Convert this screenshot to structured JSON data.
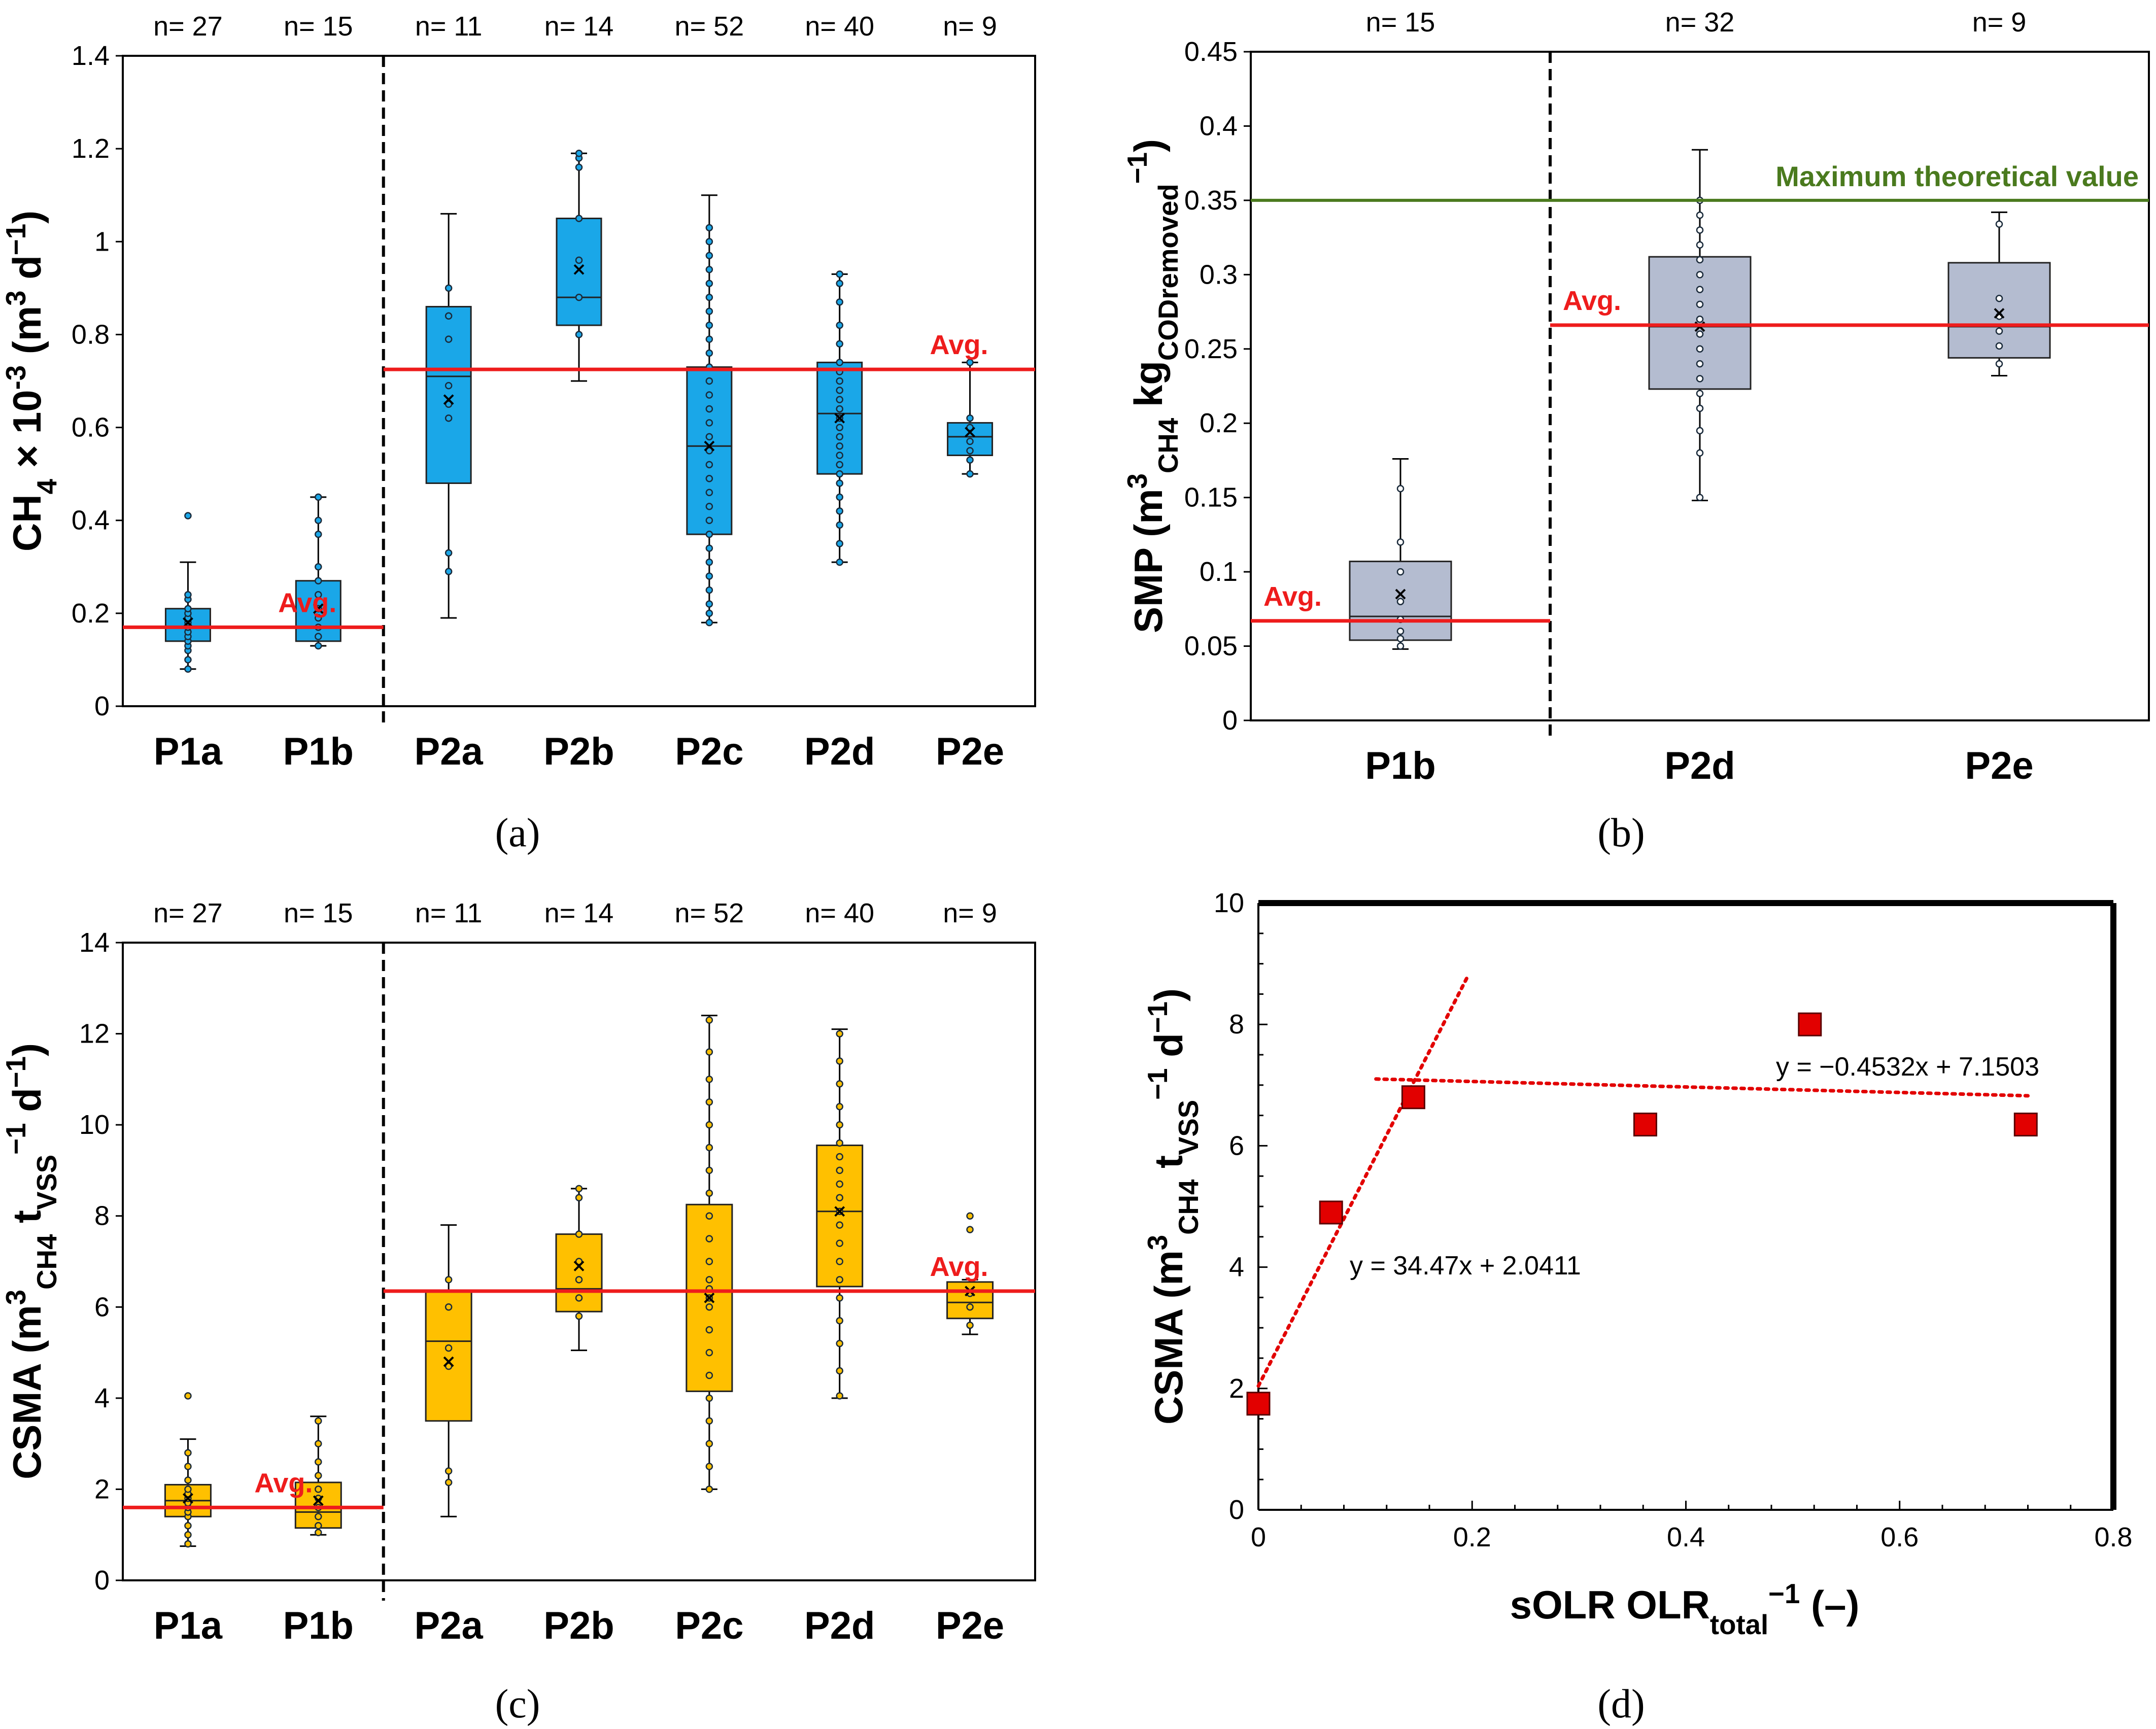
{
  "colors": {
    "blue_box": "#1aa7e8",
    "gray_box": "#b4bcd0",
    "yellow_box": "#ffc000",
    "avg_line": "#ee1c1c",
    "theoretical_line": "#4a7a1e",
    "marker": "#e20000"
  },
  "chart_data": [
    {
      "panel": "a",
      "type": "box",
      "caption": "(a)",
      "ylabel": "CH4 × 10-3 (m3 d−1)",
      "ylabel_parts": {
        "main": "CH",
        "sub": "4",
        "mid": " × 10",
        "sup": "-3",
        "open": " (m",
        "sup2": "3",
        "d": " d",
        "sup3": "−1",
        "close": ")"
      },
      "ylim": [
        0,
        1.4
      ],
      "yticks": [
        0,
        0.2,
        0.4,
        0.6,
        0.8,
        1,
        1.2,
        1.4
      ],
      "ytick_labels": [
        "0",
        "0.2",
        "0.4",
        "0.6",
        "0.8",
        "1",
        "1.2",
        "1.4"
      ],
      "categories": [
        "P1a",
        "P1b",
        "P2a",
        "P2b",
        "P2c",
        "P2d",
        "P2e"
      ],
      "counts": [
        "n= 27",
        "n= 15",
        "n= 11",
        "n= 14",
        "n= 52",
        "n= 40",
        "n= 9"
      ],
      "separator_after_index": 1,
      "boxes": [
        {
          "whisker_low": 0.08,
          "q1": 0.14,
          "median": 0.17,
          "q3": 0.21,
          "whisker_high": 0.31,
          "mean": 0.18,
          "points": [
            0.08,
            0.1,
            0.12,
            0.13,
            0.14,
            0.15,
            0.16,
            0.17,
            0.18,
            0.19,
            0.2,
            0.21,
            0.23,
            0.24,
            0.41
          ]
        },
        {
          "whisker_low": 0.13,
          "q1": 0.14,
          "median": 0.17,
          "q3": 0.27,
          "whisker_high": 0.45,
          "mean": 0.21,
          "points": [
            0.13,
            0.15,
            0.17,
            0.19,
            0.21,
            0.24,
            0.27,
            0.3,
            0.37,
            0.4,
            0.45
          ]
        },
        {
          "whisker_low": 0.19,
          "q1": 0.48,
          "median": 0.71,
          "q3": 0.86,
          "whisker_high": 1.06,
          "mean": 0.66,
          "points": [
            0.29,
            0.33,
            0.62,
            0.65,
            0.69,
            0.79,
            0.84,
            0.9
          ]
        },
        {
          "whisker_low": 0.7,
          "q1": 0.82,
          "median": 0.88,
          "q3": 1.05,
          "whisker_high": 1.19,
          "mean": 0.94,
          "points": [
            0.8,
            0.88,
            0.96,
            1.05,
            1.16,
            1.18,
            1.19
          ]
        },
        {
          "whisker_low": 0.18,
          "q1": 0.37,
          "median": 0.56,
          "q3": 0.73,
          "whisker_high": 1.1,
          "mean": 0.56,
          "points": [
            0.18,
            0.2,
            0.22,
            0.25,
            0.28,
            0.31,
            0.34,
            0.37,
            0.4,
            0.43,
            0.46,
            0.49,
            0.52,
            0.55,
            0.58,
            0.61,
            0.64,
            0.67,
            0.7,
            0.73,
            0.76,
            0.79,
            0.82,
            0.85,
            0.88,
            0.91,
            0.94,
            0.97,
            1.0,
            1.03
          ]
        },
        {
          "whisker_low": 0.31,
          "q1": 0.5,
          "median": 0.63,
          "q3": 0.74,
          "whisker_high": 0.93,
          "mean": 0.62,
          "points": [
            0.31,
            0.35,
            0.39,
            0.42,
            0.45,
            0.48,
            0.5,
            0.52,
            0.54,
            0.56,
            0.58,
            0.6,
            0.62,
            0.64,
            0.66,
            0.68,
            0.7,
            0.72,
            0.74,
            0.78,
            0.82,
            0.87,
            0.91,
            0.93
          ]
        },
        {
          "whisker_low": 0.5,
          "q1": 0.54,
          "median": 0.58,
          "q3": 0.61,
          "whisker_high": 0.74,
          "mean": 0.59,
          "points": [
            0.5,
            0.53,
            0.55,
            0.57,
            0.6,
            0.62,
            0.74
          ]
        }
      ],
      "averages": [
        {
          "label": "Avg.",
          "value": 0.17,
          "from_index": 0,
          "to_index": 1,
          "label_at": "right"
        },
        {
          "label": "Avg.",
          "value": 0.725,
          "from_index": 2,
          "to_index": 6,
          "label_at": "right"
        }
      ]
    },
    {
      "panel": "b",
      "type": "box",
      "caption": "(b)",
      "ylabel_parts": {
        "main": "SMP (m",
        "sup": "3",
        "sub1": "CH4",
        "mid": " kg",
        "sub2": "CODremoved",
        "sup2": "−1",
        "close": ")"
      },
      "ylim": [
        0,
        0.45
      ],
      "yticks": [
        0,
        0.05,
        0.1,
        0.15,
        0.2,
        0.25,
        0.3,
        0.35,
        0.4,
        0.45
      ],
      "ytick_labels": [
        "0",
        "0.05",
        "0.1",
        "0.15",
        "0.2",
        "0.25",
        "0.3",
        "0.35",
        "0.4",
        "0.45"
      ],
      "categories": [
        "P1b",
        "P2d",
        "P2e"
      ],
      "counts": [
        "n= 15",
        "n= 32",
        "n= 9"
      ],
      "separator_after_index": 0,
      "boxes": [
        {
          "whisker_low": 0.048,
          "q1": 0.054,
          "median": 0.07,
          "q3": 0.107,
          "whisker_high": 0.176,
          "mean": 0.085,
          "points": [
            0.05,
            0.055,
            0.06,
            0.068,
            0.08,
            0.1,
            0.12,
            0.156
          ]
        },
        {
          "whisker_low": 0.148,
          "q1": 0.223,
          "median": 0.265,
          "q3": 0.312,
          "whisker_high": 0.384,
          "mean": 0.265,
          "points": [
            0.15,
            0.18,
            0.195,
            0.21,
            0.22,
            0.23,
            0.24,
            0.25,
            0.26,
            0.27,
            0.28,
            0.29,
            0.3,
            0.31,
            0.32,
            0.33,
            0.34,
            0.35
          ]
        },
        {
          "whisker_low": 0.232,
          "q1": 0.244,
          "median": 0.265,
          "q3": 0.308,
          "whisker_high": 0.342,
          "mean": 0.274,
          "points": [
            0.24,
            0.252,
            0.262,
            0.272,
            0.284,
            0.334
          ]
        }
      ],
      "theoretical": {
        "label": "Maximum theoretical value",
        "value": 0.35
      },
      "averages": [
        {
          "label": "Avg.",
          "value": 0.067,
          "from_index": 0,
          "to_index": 0,
          "label_at": "left"
        },
        {
          "label": "Avg.",
          "value": 0.266,
          "from_index": 1,
          "to_index": 2,
          "label_at": "left"
        }
      ]
    },
    {
      "panel": "c",
      "type": "box",
      "caption": "(c)",
      "ylabel_parts": {
        "main": "CSMA (m",
        "sup": "3",
        "sub1": "CH4",
        "mid": " t",
        "sub2": "VSS",
        "sup2": "−1",
        "end": " d",
        "sup3": "−1",
        "close": ")"
      },
      "ylim": [
        0,
        14
      ],
      "yticks": [
        0,
        2,
        4,
        6,
        8,
        10,
        12,
        14
      ],
      "ytick_labels": [
        "0",
        "2",
        "4",
        "6",
        "8",
        "10",
        "12",
        "14"
      ],
      "categories": [
        "P1a",
        "P1b",
        "P2a",
        "P2b",
        "P2c",
        "P2d",
        "P2e"
      ],
      "counts": [
        "n= 27",
        "n= 15",
        "n= 11",
        "n= 14",
        "n= 52",
        "n= 40",
        "n= 9"
      ],
      "separator_after_index": 1,
      "boxes": [
        {
          "whisker_low": 0.75,
          "q1": 1.4,
          "median": 1.75,
          "q3": 2.1,
          "whisker_high": 3.1,
          "mean": 1.8,
          "points": [
            0.8,
            1.0,
            1.2,
            1.4,
            1.5,
            1.6,
            1.7,
            1.8,
            1.9,
            2.0,
            2.2,
            2.5,
            2.8,
            4.05
          ]
        },
        {
          "whisker_low": 1.0,
          "q1": 1.15,
          "median": 1.5,
          "q3": 2.15,
          "whisker_high": 3.6,
          "mean": 1.75,
          "points": [
            1.05,
            1.2,
            1.4,
            1.6,
            1.8,
            2.0,
            2.3,
            2.6,
            3.0,
            3.5
          ]
        },
        {
          "whisker_low": 1.4,
          "q1": 3.5,
          "median": 5.25,
          "q3": 6.35,
          "whisker_high": 7.8,
          "mean": 4.8,
          "points": [
            2.15,
            2.4,
            4.7,
            5.1,
            6.0,
            6.6
          ]
        },
        {
          "whisker_low": 5.05,
          "q1": 5.9,
          "median": 6.4,
          "q3": 7.6,
          "whisker_high": 8.6,
          "mean": 6.9,
          "points": [
            5.8,
            6.2,
            6.6,
            7.0,
            7.6,
            8.4,
            8.6
          ]
        },
        {
          "whisker_low": 2.0,
          "q1": 4.15,
          "median": 6.35,
          "q3": 8.25,
          "whisker_high": 12.4,
          "mean": 6.2,
          "points": [
            2.0,
            2.5,
            3.0,
            3.5,
            4.0,
            4.5,
            5.0,
            5.5,
            6.0,
            6.2,
            6.4,
            6.6,
            7.0,
            7.5,
            8.0,
            8.5,
            9.0,
            9.5,
            10.0,
            10.5,
            11.0,
            11.6,
            12.3
          ]
        },
        {
          "whisker_low": 4.0,
          "q1": 6.45,
          "median": 8.1,
          "q3": 9.55,
          "whisker_high": 12.1,
          "mean": 8.1,
          "points": [
            4.05,
            4.6,
            5.2,
            5.7,
            6.2,
            6.6,
            7.0,
            7.4,
            7.8,
            8.1,
            8.4,
            8.7,
            9.0,
            9.3,
            9.6,
            10.0,
            10.4,
            10.9,
            11.4,
            12.0
          ]
        },
        {
          "whisker_low": 5.4,
          "q1": 5.75,
          "median": 6.1,
          "q3": 6.55,
          "whisker_high": 6.6,
          "mean": 6.35,
          "points": [
            5.6,
            6.0,
            6.3,
            7.7,
            8.0
          ]
        }
      ],
      "averages": [
        {
          "label": "Avg.",
          "value": 1.6,
          "from_index": 0,
          "to_index": 1,
          "label_at": "mid"
        },
        {
          "label": "Avg.",
          "value": 6.35,
          "from_index": 2,
          "to_index": 6,
          "label_at": "right"
        }
      ]
    },
    {
      "panel": "d",
      "type": "scatter",
      "caption": "(d)",
      "xlabel_parts": {
        "main": "sOLR OLR",
        "sub": "total",
        "sup": "−1",
        "close": " (–)"
      },
      "ylabel_parts": {
        "main": "CSMA (m",
        "sup": "3",
        "sub1": "CH4",
        "mid": " t",
        "sub2": "VSS",
        "sup2": "−1",
        "end": " d",
        "sup3": "−1",
        "close": ")"
      },
      "xlim": [
        0,
        0.8
      ],
      "ylim": [
        0,
        10
      ],
      "xticks": [
        0,
        0.2,
        0.4,
        0.6,
        0.8
      ],
      "xtick_labels": [
        "0",
        "0.2",
        "0.4",
        "0.6",
        "0.8"
      ],
      "yticks": [
        0,
        2,
        4,
        6,
        8,
        10
      ],
      "ytick_labels": [
        "0",
        "2",
        "4",
        "6",
        "8",
        "10"
      ],
      "points": [
        {
          "x": 0.0,
          "y": 1.75
        },
        {
          "x": 0.068,
          "y": 4.9
        },
        {
          "x": 0.145,
          "y": 6.8
        },
        {
          "x": 0.362,
          "y": 6.35
        },
        {
          "x": 0.516,
          "y": 8.0
        },
        {
          "x": 0.718,
          "y": 6.35
        }
      ],
      "trendlines": [
        {
          "label": "y = 34.47x + 2.0411",
          "slope": 34.47,
          "intercept": 2.0411,
          "x_from": 0.0,
          "x_to": 0.195
        },
        {
          "label": "y = −0.4532x + 7.1503",
          "slope": -0.4532,
          "intercept": 7.1503,
          "x_from": 0.11,
          "x_to": 0.72
        }
      ]
    }
  ]
}
